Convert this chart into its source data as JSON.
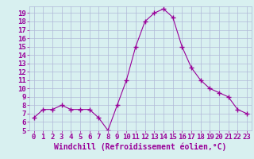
{
  "x": [
    0,
    1,
    2,
    3,
    4,
    5,
    6,
    7,
    8,
    9,
    10,
    11,
    12,
    13,
    14,
    15,
    16,
    17,
    18,
    19,
    20,
    21,
    22,
    23
  ],
  "y": [
    6.5,
    7.5,
    7.5,
    8.0,
    7.5,
    7.5,
    7.5,
    6.5,
    5.0,
    8.0,
    11.0,
    15.0,
    18.0,
    19.0,
    19.5,
    18.5,
    15.0,
    12.5,
    11.0,
    10.0,
    9.5,
    9.0,
    7.5,
    7.0
  ],
  "line_color": "#990099",
  "marker": "+",
  "marker_size": 4,
  "xlabel": "Windchill (Refroidissement éolien,°C)",
  "ylim": [
    5,
    19.8
  ],
  "xlim": [
    -0.5,
    23.5
  ],
  "yticks": [
    5,
    6,
    7,
    8,
    9,
    10,
    11,
    12,
    13,
    14,
    15,
    16,
    17,
    18,
    19
  ],
  "xticks": [
    0,
    1,
    2,
    3,
    4,
    5,
    6,
    7,
    8,
    9,
    10,
    11,
    12,
    13,
    14,
    15,
    16,
    17,
    18,
    19,
    20,
    21,
    22,
    23
  ],
  "background_color": "#d8f0f0",
  "grid_color": "#b0b8d8",
  "xlabel_color": "#990099",
  "tick_color": "#990099",
  "tick_fontsize": 6.5,
  "xlabel_fontsize": 7.0
}
